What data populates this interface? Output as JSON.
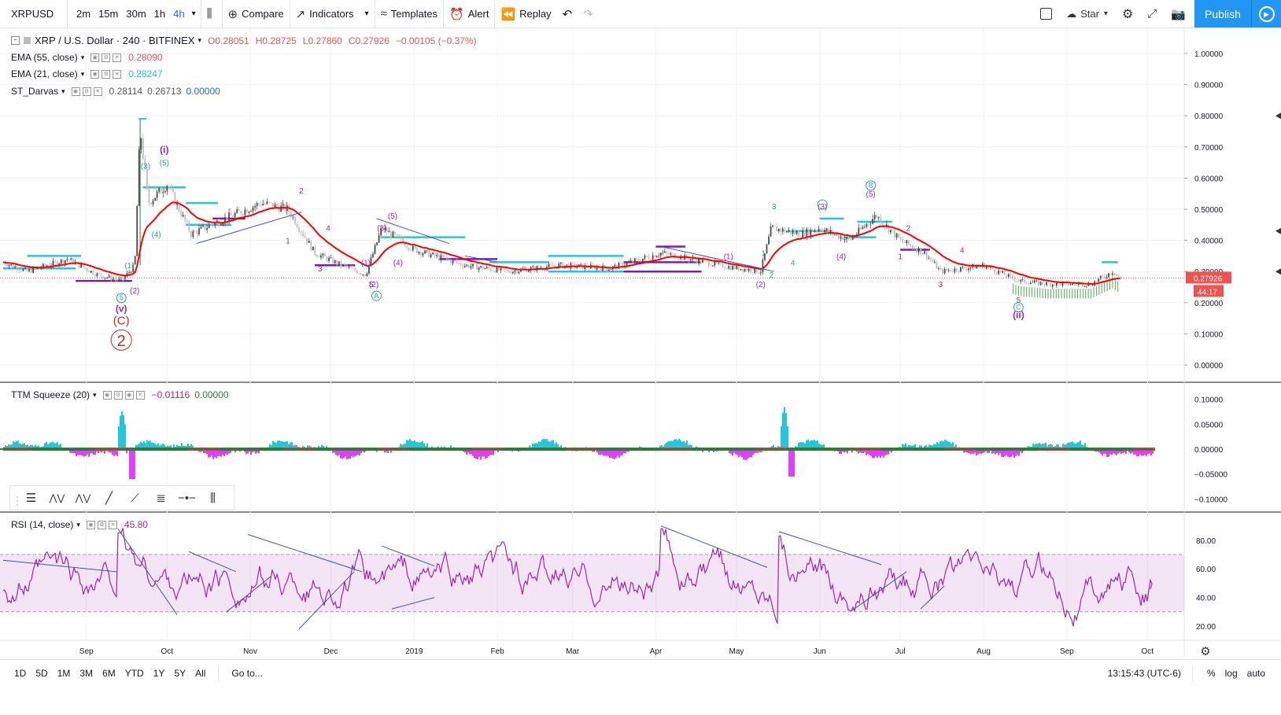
{
  "toolbar": {
    "symbol": "XRPUSD",
    "intervals": [
      "2m",
      "15m",
      "30m",
      "1h",
      "4h"
    ],
    "active_interval": "4h",
    "compare": "Compare",
    "indicators": "Indicators",
    "templates": "Templates",
    "alert": "Alert",
    "replay": "Replay",
    "layout_name": "Star",
    "publish": "Publish"
  },
  "legend": {
    "title": "XRP / U.S. Dollar · 240 · BITFINEX",
    "ohlc": {
      "o": "O0.28051",
      "h": "H0.28725",
      "l": "L0.27860",
      "c": "C0.27926",
      "chg": "−0.00105 (−0.37%)"
    },
    "ema55": {
      "label": "EMA (55, close)",
      "value": "0.28090"
    },
    "ema21": {
      "label": "EMA (21, close)",
      "value": "0.28247"
    },
    "darvas": {
      "label": "ST_Darvas",
      "v1": "0.28114",
      "v2": "0.26713",
      "v3": "0.00000"
    },
    "ttm": {
      "label": "TTM Squeeze (20)",
      "v1": "−0.01116",
      "v2": "0.00000"
    },
    "rsi": {
      "label": "RSI (14, close)",
      "value": "45.80"
    }
  },
  "price_axis": {
    "ticks": [
      "1.00000",
      "0.90000",
      "0.80000",
      "0.70000",
      "0.60000",
      "0.50000",
      "0.40000",
      "0.30000",
      "0.20000",
      "0.10000",
      "0.00000"
    ],
    "last_price": "0.27926",
    "countdown": "44:17"
  },
  "ttm_axis": {
    "ticks": [
      "0.10000",
      "0.05000",
      "0.00000",
      "−0.05000",
      "−0.10000"
    ]
  },
  "rsi_axis": {
    "ticks": [
      "80.00",
      "60.00",
      "40.00",
      "20.00"
    ]
  },
  "time_axis": {
    "labels": [
      "Sep",
      "Oct",
      "Nov",
      "Dec",
      "2019",
      "Feb",
      "Mar",
      "Apr",
      "May",
      "Jun",
      "Jul",
      "Aug",
      "Sep",
      "Oct"
    ]
  },
  "wave_labels": {
    "big2": "2",
    "C": "(C)",
    "v": "(v)",
    "i": "(i)",
    "ii": "(ii)",
    "A": "A",
    "B": "B",
    "Cc": "C"
  },
  "bottom": {
    "ranges": [
      "1D",
      "5D",
      "1M",
      "3M",
      "6M",
      "YTD",
      "1Y",
      "5Y",
      "All"
    ],
    "goto": "Go to...",
    "time": "13:15:43 (UTC-6)",
    "pct": "%",
    "log": "log",
    "auto": "auto"
  },
  "chart_data": [
    {
      "type": "candlestick",
      "title": "XRP / U.S. Dollar · 240 · BITFINEX",
      "x_range": [
        "2018-08",
        "2019-10"
      ],
      "ylim": [
        0,
        1.0
      ],
      "price_path": [
        {
          "date": "2018-08-01",
          "price": 0.33
        },
        {
          "date": "2018-08-10",
          "price": 0.3
        },
        {
          "date": "2018-08-25",
          "price": 0.34
        },
        {
          "date": "2018-09-05",
          "price": 0.29
        },
        {
          "date": "2018-09-14",
          "price": 0.27
        },
        {
          "date": "2018-09-19",
          "price": 0.32
        },
        {
          "date": "2018-09-21",
          "price": 0.76
        },
        {
          "date": "2018-09-24",
          "price": 0.52
        },
        {
          "date": "2018-10-01",
          "price": 0.58
        },
        {
          "date": "2018-10-10",
          "price": 0.42
        },
        {
          "date": "2018-10-20",
          "price": 0.46
        },
        {
          "date": "2018-11-05",
          "price": 0.52
        },
        {
          "date": "2018-11-15",
          "price": 0.5
        },
        {
          "date": "2018-11-25",
          "price": 0.36
        },
        {
          "date": "2018-12-05",
          "price": 0.32
        },
        {
          "date": "2018-12-14",
          "price": 0.29
        },
        {
          "date": "2018-12-20",
          "price": 0.44
        },
        {
          "date": "2019-01-01",
          "price": 0.37
        },
        {
          "date": "2019-01-20",
          "price": 0.32
        },
        {
          "date": "2019-02-05",
          "price": 0.3
        },
        {
          "date": "2019-02-24",
          "price": 0.32
        },
        {
          "date": "2019-03-15",
          "price": 0.31
        },
        {
          "date": "2019-04-03",
          "price": 0.36
        },
        {
          "date": "2019-04-25",
          "price": 0.32
        },
        {
          "date": "2019-05-10",
          "price": 0.3
        },
        {
          "date": "2019-05-14",
          "price": 0.44
        },
        {
          "date": "2019-05-25",
          "price": 0.42
        },
        {
          "date": "2019-06-01",
          "price": 0.44
        },
        {
          "date": "2019-06-12",
          "price": 0.4
        },
        {
          "date": "2019-06-22",
          "price": 0.48
        },
        {
          "date": "2019-07-01",
          "price": 0.4
        },
        {
          "date": "2019-07-10",
          "price": 0.36
        },
        {
          "date": "2019-07-16",
          "price": 0.3
        },
        {
          "date": "2019-08-01",
          "price": 0.32
        },
        {
          "date": "2019-08-14",
          "price": 0.27
        },
        {
          "date": "2019-08-25",
          "price": 0.26
        },
        {
          "date": "2019-09-10",
          "price": 0.26
        },
        {
          "date": "2019-09-18",
          "price": 0.3
        },
        {
          "date": "2019-09-21",
          "price": 0.28
        }
      ],
      "series": [
        {
          "name": "EMA (21, close)",
          "color": "#ff0000"
        }
      ],
      "last_price": 0.27926
    },
    {
      "type": "histogram",
      "title": "TTM Squeeze (20)",
      "ylim": [
        -0.1,
        0.1
      ],
      "positive_color": "#26c6da",
      "negative_color": "#e040fb"
    },
    {
      "type": "line",
      "title": "RSI (14, close)",
      "ylim": [
        20,
        80
      ],
      "band": [
        30,
        70
      ],
      "last_value": 45.8,
      "color": "#9c27b0"
    }
  ]
}
